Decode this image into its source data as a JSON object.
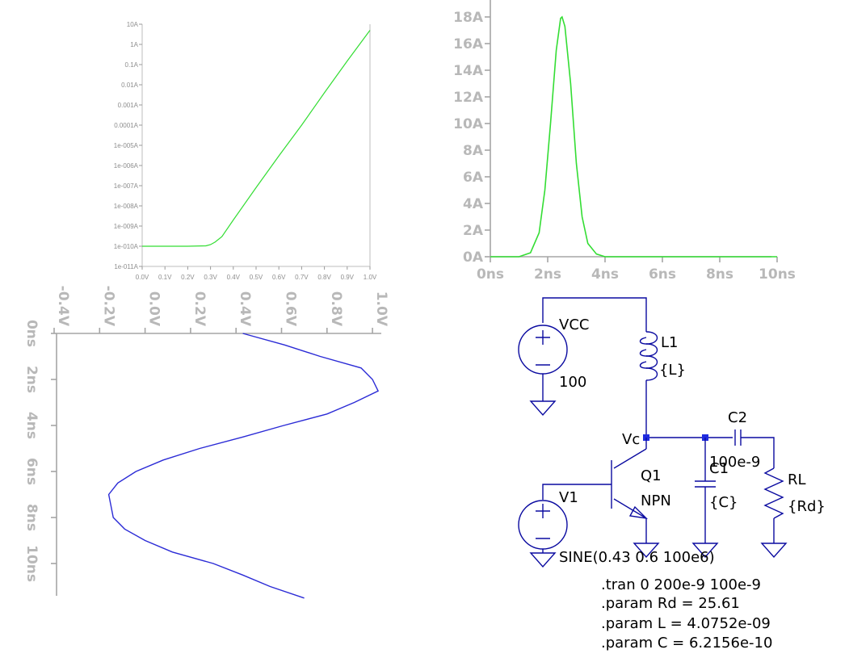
{
  "chart_data": [
    {
      "type": "line",
      "title": "",
      "xlabel": "",
      "ylabel": "",
      "yscale": "log",
      "x_ticks": [
        "0.0V",
        "0.1V",
        "0.2V",
        "0.3V",
        "0.4V",
        "0.5V",
        "0.6V",
        "0.7V",
        "0.8V",
        "0.9V",
        "1.0V"
      ],
      "y_ticks": [
        "10A",
        "1A",
        "0.1A",
        "0.01A",
        "0.001A",
        "0.0001A",
        "1e-005A",
        "1e-006A",
        "1e-007A",
        "1e-008A",
        "1e-009A",
        "1e-010A",
        "1e-011A"
      ],
      "xlim": [
        0,
        1.0
      ],
      "ylim": [
        1e-11,
        10
      ],
      "grid": false,
      "series": [
        {
          "color": "#33dd33",
          "x": [
            0.0,
            0.2,
            0.28,
            0.3,
            0.32,
            0.35,
            0.4,
            0.5,
            0.6,
            0.7,
            0.8,
            0.9,
            1.0
          ],
          "y": [
            1e-10,
            1e-10,
            1.05e-10,
            1.2e-10,
            1.6e-10,
            3e-10,
            2e-09,
            8e-08,
            3e-06,
            0.0001,
            0.004,
            0.15,
            5.0
          ]
        }
      ]
    },
    {
      "type": "line",
      "title": "",
      "xlabel": "",
      "ylabel": "",
      "x_ticks": [
        "0ns",
        "2ns",
        "4ns",
        "6ns",
        "8ns",
        "10ns"
      ],
      "y_ticks": [
        "0A",
        "2A",
        "4A",
        "6A",
        "8A",
        "10A",
        "12A",
        "14A",
        "16A",
        "18A"
      ],
      "xlim": [
        0,
        10
      ],
      "ylim": [
        0,
        19
      ],
      "grid": false,
      "series": [
        {
          "color": "#33dd33",
          "x": [
            0.0,
            1.0,
            1.4,
            1.7,
            1.9,
            2.1,
            2.3,
            2.45,
            2.5,
            2.6,
            2.8,
            3.0,
            3.2,
            3.4,
            3.7,
            4.0,
            10.0
          ],
          "y": [
            0.0,
            0.0,
            0.3,
            1.8,
            5.0,
            10.0,
            15.5,
            17.9,
            18.0,
            17.3,
            13.0,
            7.0,
            3.0,
            1.0,
            0.2,
            0.0,
            0.0
          ]
        }
      ]
    },
    {
      "type": "line",
      "title": "",
      "xlabel": "",
      "ylabel": "",
      "orientation": "rotated-90",
      "x_ticks": [
        "0ns",
        "2ns",
        "4ns",
        "6ns",
        "8ns",
        "10ns"
      ],
      "y_ticks": [
        "-0.4V",
        "-0.2V",
        "0.0V",
        "0.2V",
        "0.4V",
        "0.6V",
        "0.8V",
        "1.0V"
      ],
      "xlim": [
        0,
        11.5
      ],
      "ylim": [
        -0.45,
        1.05
      ],
      "grid": false,
      "series": [
        {
          "color": "#2b2bd6",
          "x": [
            0.0,
            0.5,
            1.0,
            1.5,
            2.0,
            2.5,
            3.0,
            3.5,
            4.0,
            4.5,
            5.0,
            5.5,
            6.0,
            6.5,
            7.0,
            7.5,
            8.0,
            8.5,
            9.0,
            9.5,
            10.0,
            10.5,
            11.0,
            11.5
          ],
          "y": [
            0.43,
            0.614,
            0.77,
            0.95,
            1.0,
            1.025,
            0.92,
            0.8,
            0.61,
            0.43,
            0.24,
            0.08,
            -0.04,
            -0.12,
            -0.16,
            -0.15,
            -0.14,
            -0.09,
            0.0,
            0.12,
            0.3,
            0.43,
            0.55,
            0.7
          ]
        }
      ]
    }
  ],
  "schematic": {
    "vcc_label": "VCC",
    "vcc_value": "100",
    "l1_name": "L1",
    "l1_value": "{L}",
    "c2_name": "C2",
    "c2_value": "100e-9",
    "vc_label": "Vc",
    "c1_name": "C1",
    "c1_value": "{C}",
    "q1_name": "Q1",
    "q1_type": "NPN",
    "rl_name": "RL",
    "rl_value": "{Rd}",
    "v1_name": "V1",
    "v1_value": "SINE(0.43 0.6 100e6)",
    "wire_color": "#0a0aa0",
    "node_color": "#1f2be0"
  },
  "directives": [
    ".tran 0 200e-9 100e-9",
    ".param Rd = 25.61",
    ".param L = 4.0752e-09",
    ".param C = 6.2156e-10"
  ]
}
